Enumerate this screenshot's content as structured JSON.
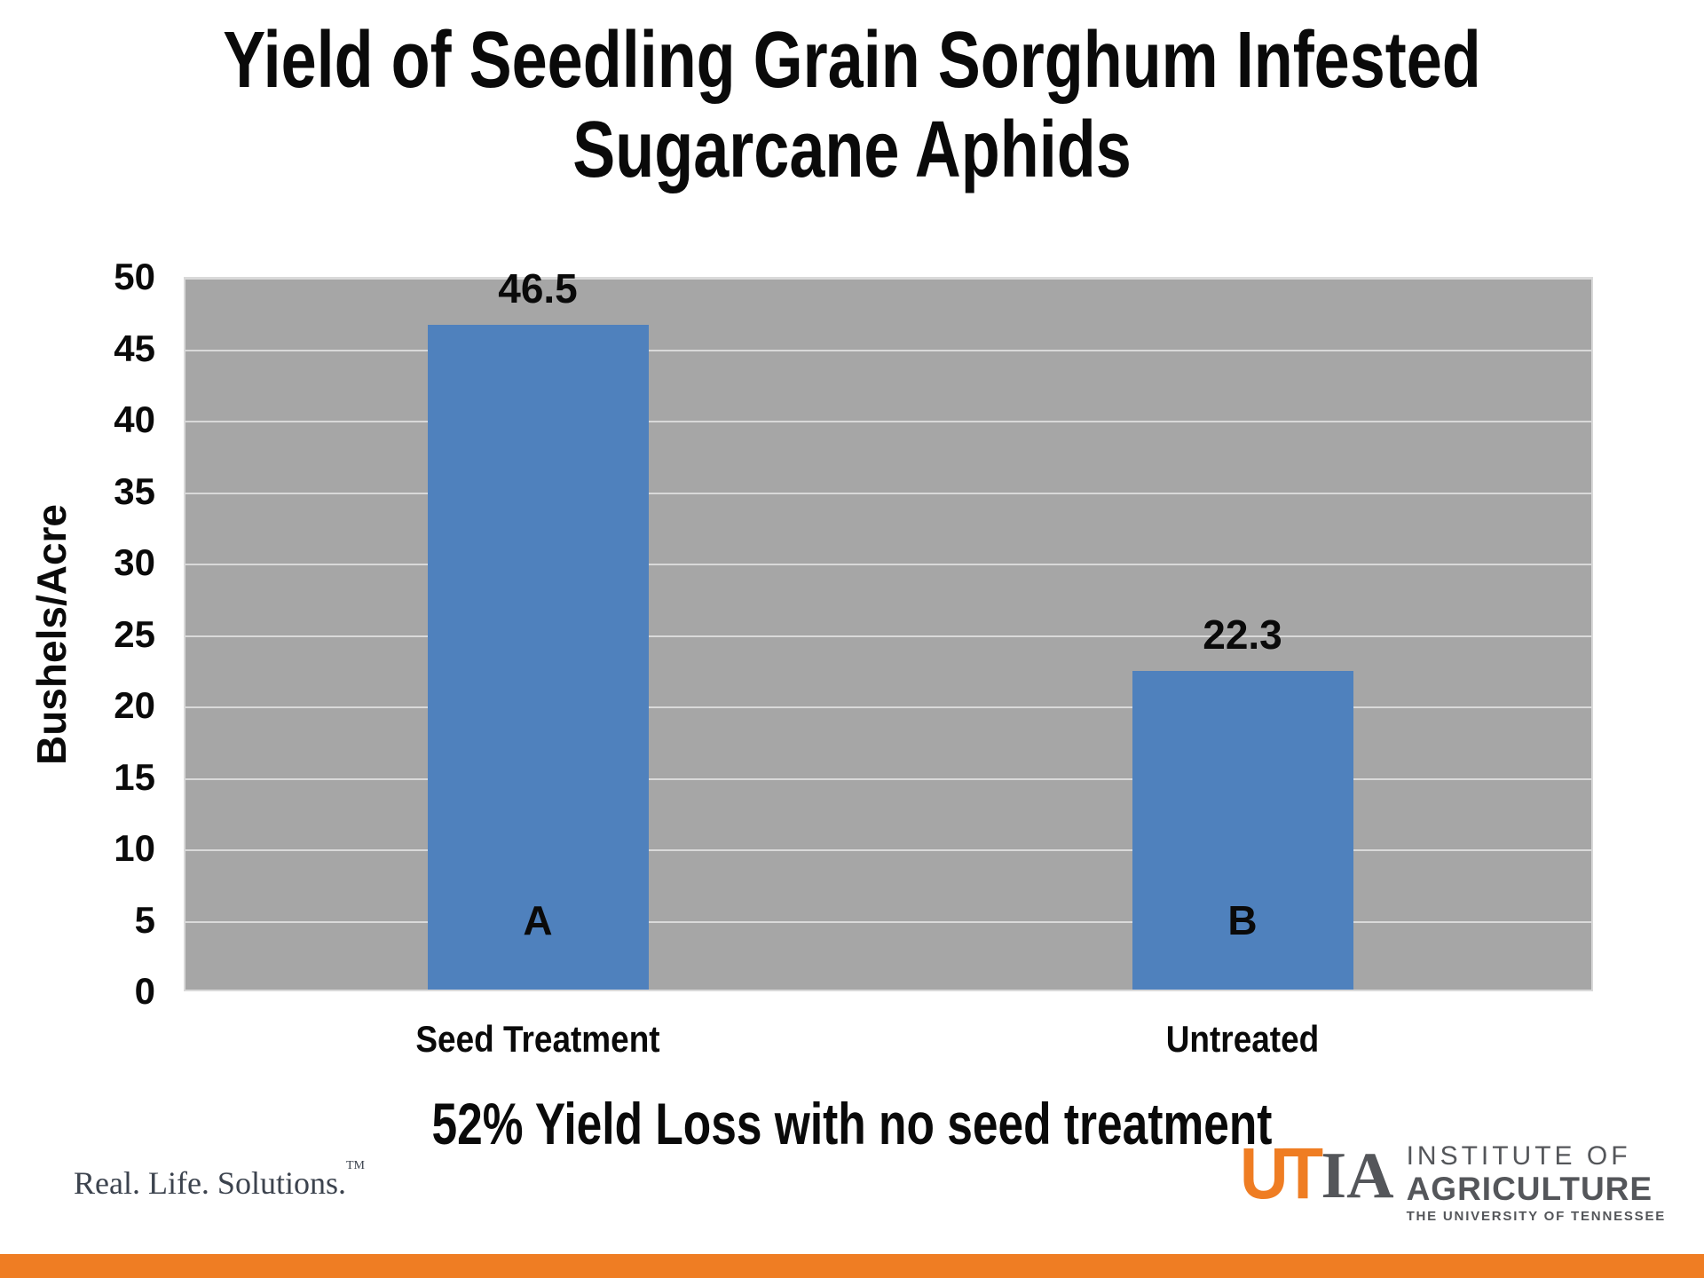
{
  "title": {
    "line1": "Yield of Seedling Grain Sorghum Infested",
    "line2": "Sugarcane Aphids"
  },
  "caption": "52% Yield Loss with no seed treatment",
  "footer": {
    "tagline": "Real. Life. Solutions.",
    "tagline_tm": "TM",
    "logo": {
      "mark_ut": "UT",
      "mark_ia": "IA",
      "line1": "INSTITUTE OF",
      "line2": "AGRICULTURE",
      "line3": "THE UNIVERSITY OF TENNESSEE"
    }
  },
  "colors": {
    "bar_blue": "#4F81BD",
    "plot_bg": "#A6A6A6",
    "gridline": "#D9D9D9",
    "accent_orange": "#EF7D23",
    "logo_orange": "#EF7D23",
    "logo_gray": "#54565A",
    "tagline_gray": "#3C434E"
  },
  "chart_data": {
    "type": "bar",
    "title": "Yield of Seedling Grain Sorghum Infested Sugarcane Aphids",
    "categories": [
      "Seed Treatment",
      "Untreated"
    ],
    "values": [
      46.5,
      22.3
    ],
    "bar_letters": [
      "A",
      "B"
    ],
    "xlabel": "",
    "ylabel": "Bushels/Acre",
    "ylim": [
      0,
      50
    ],
    "yticks": [
      0,
      5,
      10,
      15,
      20,
      25,
      30,
      35,
      40,
      45,
      50
    ],
    "grid": true,
    "legend": false,
    "plot_bg": "#A6A6A6",
    "bar_color": "#4F81BD",
    "annotation": "52% Yield Loss with no seed treatment"
  }
}
